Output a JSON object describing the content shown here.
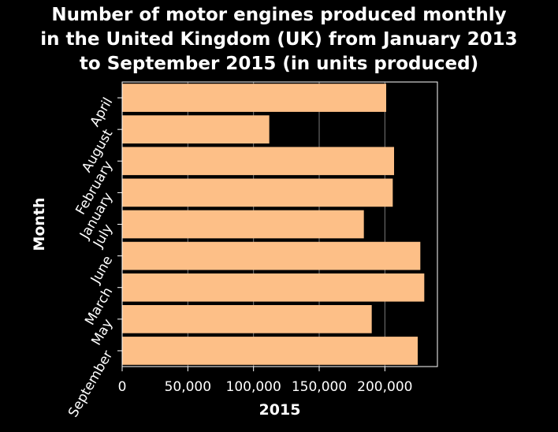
{
  "chart_data": {
    "type": "bar",
    "orientation": "horizontal",
    "title_lines": [
      "Number of motor engines produced monthly",
      "in the United Kingdom (UK) from January 2013",
      "to September 2015 (in units produced)"
    ],
    "xlabel": "2015",
    "ylabel": "Month",
    "categories": [
      "April",
      "August",
      "February",
      "January",
      "July",
      "June",
      "March",
      "May",
      "September"
    ],
    "values": [
      201000,
      112000,
      207000,
      206000,
      184000,
      227000,
      230000,
      190000,
      225000
    ],
    "xlim": [
      0,
      240000
    ],
    "xticks": [
      0,
      50000,
      100000,
      150000,
      200000
    ],
    "xtick_labels": [
      "0",
      "50,000",
      "100,000",
      "150,000",
      "200,000"
    ],
    "grid": true,
    "bar_color": "#fdbf87",
    "background_color": "#000000",
    "text_color": "#ffffff",
    "legend": "none"
  }
}
